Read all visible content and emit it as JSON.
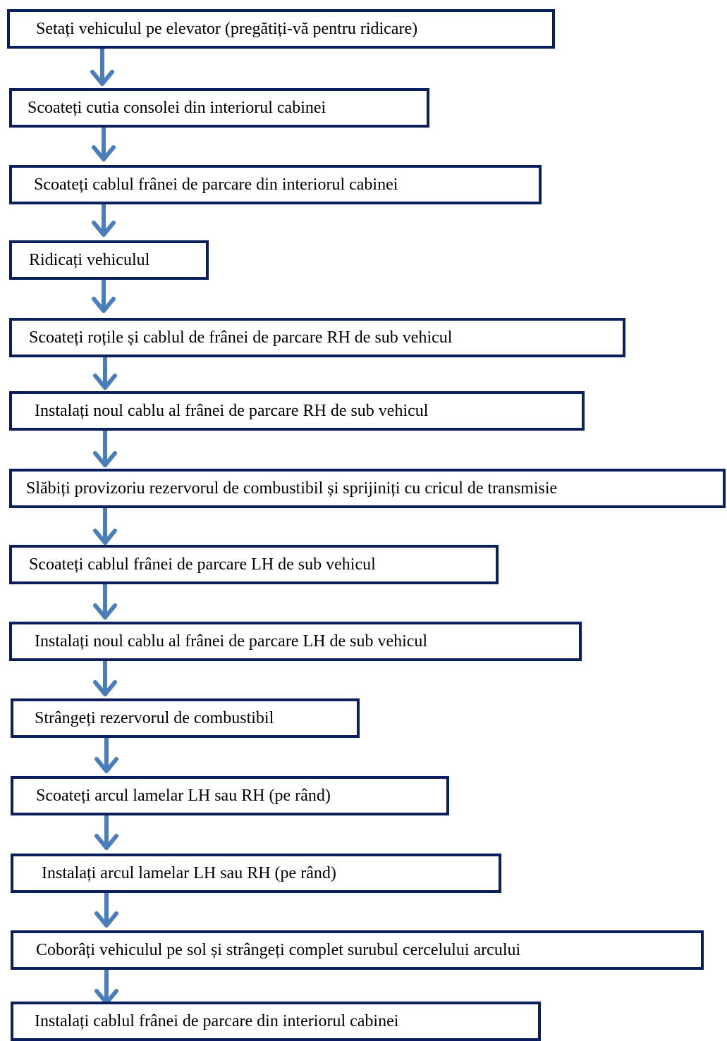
{
  "flowchart": {
    "steps": [
      {
        "label": "Setați vehiculul pe elevator (pregătiți-vă pentru ridicare)"
      },
      {
        "label": "Scoateți cutia consolei din interiorul cabinei"
      },
      {
        "label": "Scoateți cablul frânei de parcare din interiorul cabinei"
      },
      {
        "label": "Ridicați vehiculul"
      },
      {
        "label": "Scoateți roțile și cablul de frânei de parcare RH de sub vehicul"
      },
      {
        "label": "Instalați noul cablu al frânei de parcare RH de sub vehicul"
      },
      {
        "label": "Slăbiți provizoriu rezervorul de combustibil și sprijiniți cu cricul de transmisie"
      },
      {
        "label": "Scoateți cablul frânei de parcare LH de sub vehicul"
      },
      {
        "label": "Instalați noul cablu al frânei de parcare LH de sub vehicul"
      },
      {
        "label": "Strângeți rezervorul de combustibil"
      },
      {
        "label": "Scoateți arcul lamelar LH sau RH (pe rând)"
      },
      {
        "label": "Instalați arcul lamelar LH sau RH (pe rând)"
      },
      {
        "label": "Coborâți vehiculul pe sol și strângeți complet surubul cercelului arcului"
      },
      {
        "label": "Instalați cablul frânei de parcare din interiorul cabinei"
      }
    ],
    "colors": {
      "box_border": "#0b1f5c",
      "arrow": "#4a7ebb",
      "text": "#000000"
    }
  }
}
